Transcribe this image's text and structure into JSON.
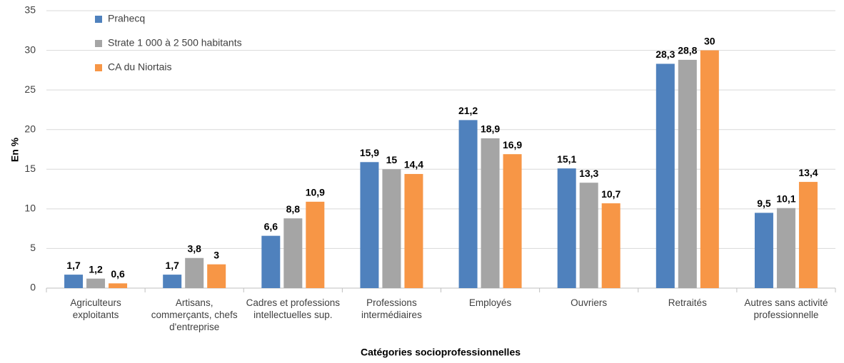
{
  "chart_data": {
    "type": "bar",
    "ylabel": "En %",
    "xlabel": "Catégories socioprofessionnelles",
    "categories": [
      "Agriculteurs exploitants",
      "Artisans, commerçants, chefs d'entreprise",
      "Cadres et professions intellectuelles sup.",
      "Professions intermédiaires",
      "Employés",
      "Ouvriers",
      "Retraités",
      "Autres sans activité professionnelle"
    ],
    "series": [
      {
        "name": "Prahecq",
        "color": "#4f81bd",
        "values": [
          1.7,
          1.7,
          6.6,
          15.9,
          21.2,
          15.1,
          28.3,
          9.5
        ],
        "value_labels": [
          "1,7",
          "1,7",
          "6,6",
          "15,9",
          "21,2",
          "15,1",
          "28,3",
          "9,5"
        ]
      },
      {
        "name": "Strate 1 000 à 2 500 habitants",
        "color": "#a5a5a5",
        "values": [
          1.2,
          3.8,
          8.8,
          15,
          18.9,
          13.3,
          28.8,
          10.1
        ],
        "value_labels": [
          "1,2",
          "3,8",
          "8,8",
          "15",
          "18,9",
          "13,3",
          "28,8",
          "10,1"
        ]
      },
      {
        "name": "CA du Niortais",
        "color": "#f79646",
        "values": [
          0.6,
          3,
          10.9,
          14.4,
          16.9,
          10.7,
          30,
          13.4
        ],
        "value_labels": [
          "0,6",
          "3",
          "10,9",
          "14,4",
          "16,9",
          "10,7",
          "30",
          "13,4"
        ]
      }
    ],
    "ylim": [
      0,
      35
    ],
    "yticks": [
      0,
      5,
      10,
      15,
      20,
      25,
      30,
      35
    ],
    "grid": true,
    "legend": "upper left"
  }
}
